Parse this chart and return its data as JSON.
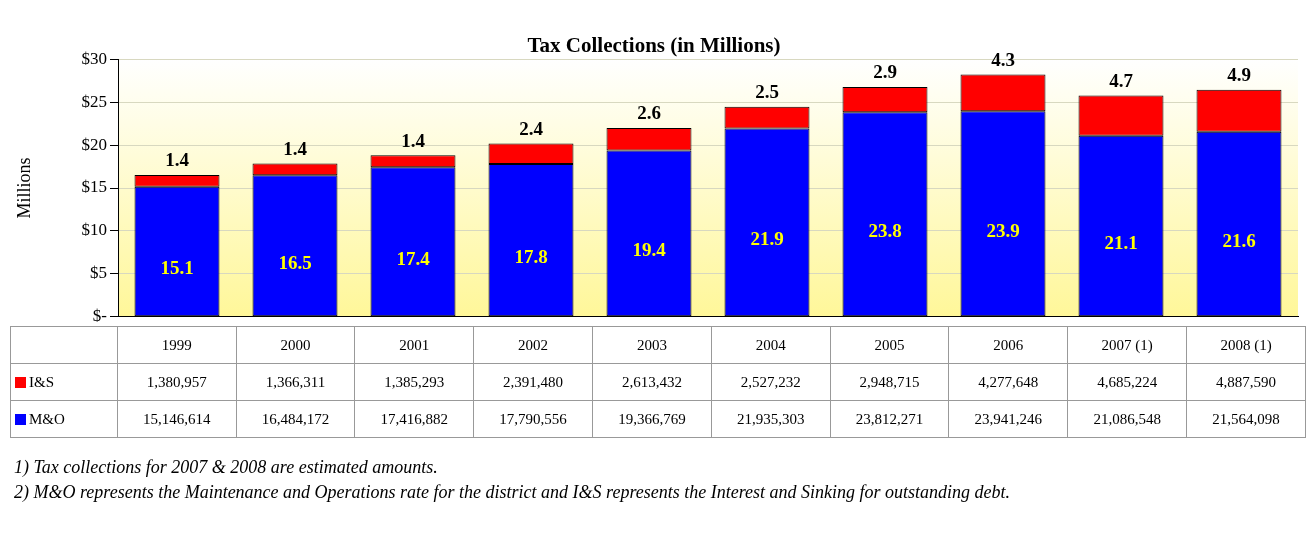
{
  "chart_data": {
    "type": "bar",
    "title": "Tax Collections (in Millions)",
    "ylabel": "Millions",
    "stacked": true,
    "grid": "y",
    "legend": "bottom",
    "categories": [
      "1999",
      "2000",
      "2001",
      "2002",
      "2003",
      "2004",
      "2005",
      "2006",
      "2007 (1)",
      "2008 (1)"
    ],
    "ylim": [
      0,
      30
    ],
    "yticks": [
      {
        "value": 0,
        "label": "$-"
      },
      {
        "value": 5,
        "label": "$5"
      },
      {
        "value": 10,
        "label": "$10"
      },
      {
        "value": 15,
        "label": "$15"
      },
      {
        "value": 20,
        "label": "$20"
      },
      {
        "value": 25,
        "label": "$25"
      },
      {
        "value": 30,
        "label": "$30"
      }
    ],
    "series": [
      {
        "name": "M&O",
        "color": "#0000ff",
        "values": [
          15.146614,
          16.484172,
          17.416882,
          17.790556,
          19.366769,
          21.935303,
          23.812271,
          23.941246,
          21.086548,
          21.564098
        ],
        "value_labels": [
          "15.1",
          "16.5",
          "17.4",
          "17.8",
          "19.4",
          "21.9",
          "23.8",
          "23.9",
          "21.1",
          "21.6"
        ]
      },
      {
        "name": "I&S",
        "color": "#ff0000",
        "values": [
          1.380957,
          1.366311,
          1.385293,
          2.39148,
          2.613432,
          2.527232,
          2.948715,
          4.277648,
          4.685224,
          4.88759
        ],
        "value_labels": [
          "1.4",
          "1.4",
          "1.4",
          "2.4",
          "2.6",
          "2.5",
          "2.9",
          "4.3",
          "4.7",
          "4.9"
        ]
      }
    ],
    "annotations": [
      "1,380,957",
      "1,366,311",
      "1,385,293",
      "2,391,480",
      "2,613,432",
      "2,527,232",
      "2,948,715",
      "4,277,648",
      "4,685,224",
      "4,887,590",
      "15,146,614",
      "16,484,172",
      "17,416,882",
      "17,790,556",
      "19,366,769",
      "21,935,303",
      "23,812,271",
      "23,941,246",
      "21,086,548",
      "21,564,098",
      "1)      Tax collections for 2007 & 2008 are estimated amounts.",
      "2)       M&O represents the Maintenance and Operations rate for the district and I&S represents the Interest and Sinking for outstanding debt."
    ]
  }
}
